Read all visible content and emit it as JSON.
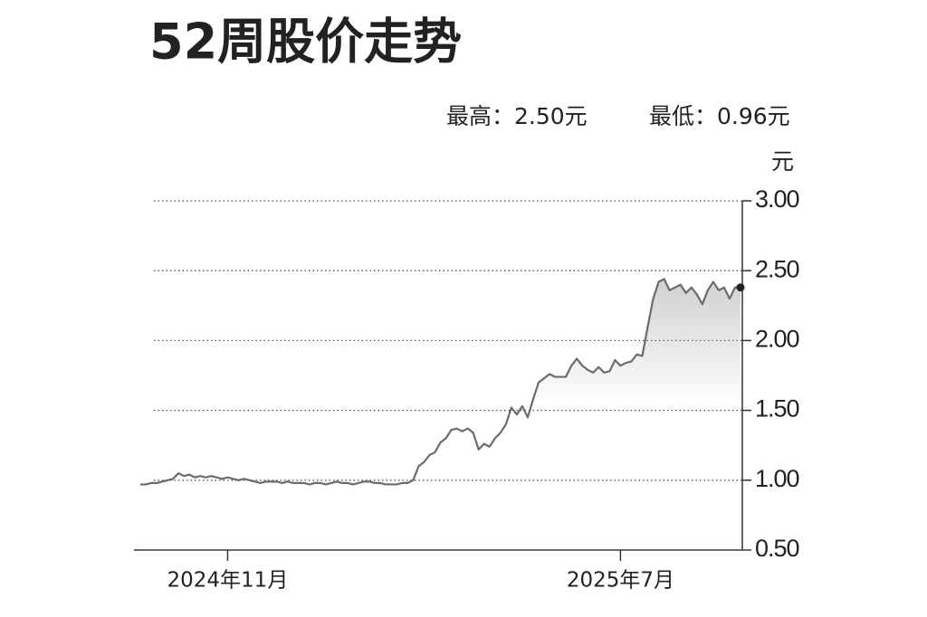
{
  "chart_data": {
    "type": "line",
    "title": "52周股价走势",
    "annotations": [
      "最高：2.50元",
      "最低：0.96元"
    ],
    "y_label": "元",
    "color": "#6b6b6b",
    "categories": [
      null,
      null,
      null,
      null,
      null,
      null,
      null,
      null,
      null,
      null,
      null,
      null,
      null,
      null,
      null,
      null,
      "2024年11月",
      null,
      null,
      null,
      null,
      null,
      null,
      null,
      null,
      null,
      null,
      null,
      null,
      null,
      null,
      null,
      null,
      null,
      null,
      null,
      null,
      null,
      null,
      null,
      null,
      null,
      null,
      null,
      null,
      null,
      null,
      null,
      null,
      null,
      null,
      null,
      null,
      null,
      null,
      null,
      null,
      null,
      null,
      null,
      null,
      null,
      null,
      null,
      null,
      null,
      null,
      null,
      null,
      null,
      null,
      null,
      null,
      null,
      null,
      null,
      null,
      null,
      null,
      null,
      null,
      null,
      null,
      null,
      null,
      null,
      null,
      null,
      "2025年7月",
      null,
      null,
      null,
      null,
      null,
      null,
      null,
      null,
      null,
      null,
      null,
      null,
      null,
      null,
      null,
      null,
      null,
      null,
      null,
      null,
      null,
      null
    ],
    "values": [
      0.97,
      0.97,
      0.98,
      0.98,
      0.99,
      1.0,
      1.01,
      1.05,
      1.03,
      1.04,
      1.02,
      1.03,
      1.02,
      1.03,
      1.02,
      1.01,
      1.02,
      1.01,
      1.0,
      1.01,
      1.0,
      0.99,
      0.98,
      0.99,
      0.99,
      0.99,
      0.98,
      0.99,
      0.98,
      0.98,
      0.98,
      0.97,
      0.98,
      0.98,
      0.97,
      0.98,
      0.99,
      0.98,
      0.98,
      0.97,
      0.98,
      0.99,
      0.99,
      0.98,
      0.98,
      0.97,
      0.97,
      0.97,
      0.98,
      0.98,
      1.0,
      1.1,
      1.13,
      1.18,
      1.2,
      1.27,
      1.3,
      1.36,
      1.37,
      1.35,
      1.37,
      1.34,
      1.22,
      1.26,
      1.24,
      1.3,
      1.34,
      1.4,
      1.52,
      1.47,
      1.53,
      1.45,
      1.58,
      1.7,
      1.73,
      1.76,
      1.74,
      1.74,
      1.74,
      1.82,
      1.87,
      1.82,
      1.79,
      1.77,
      1.81,
      1.77,
      1.78,
      1.86,
      1.82,
      1.84,
      1.85,
      1.9,
      1.89,
      2.1,
      2.3,
      2.42,
      2.44,
      2.36,
      2.38,
      2.4,
      2.34,
      2.38,
      2.33,
      2.26,
      2.36,
      2.42,
      2.36,
      2.38,
      2.3,
      2.38,
      2.38
    ],
    "ylim": [
      0.5,
      3.0
    ],
    "yticks": [
      {
        "value": 0.5,
        "label": "0.50"
      },
      {
        "value": 1,
        "label": "1.00"
      },
      {
        "value": 1.5,
        "label": "1.50"
      },
      {
        "value": 2,
        "label": "2.00"
      },
      {
        "value": 2.5,
        "label": "2.50"
      },
      {
        "value": 3,
        "label": "3.00"
      }
    ],
    "grid": true
  }
}
